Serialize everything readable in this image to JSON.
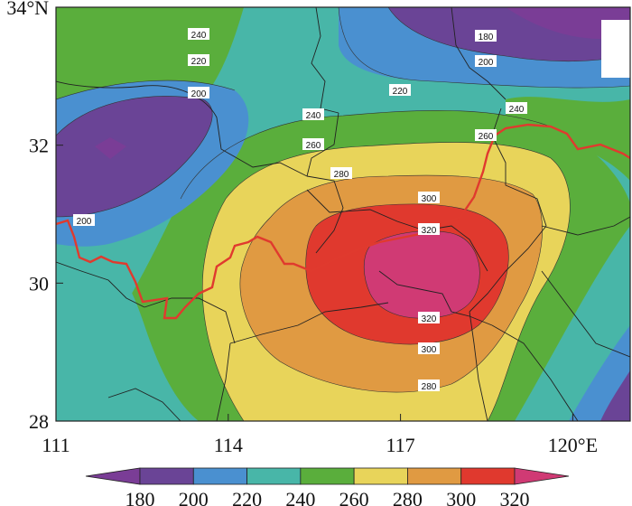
{
  "map": {
    "projection": "lat-lon",
    "extent": {
      "lon": [
        111,
        121.0
      ],
      "lat": [
        28,
        34
      ]
    },
    "lat_ticks": [
      {
        "value": 28,
        "label": "28"
      },
      {
        "value": 30,
        "label": "30"
      },
      {
        "value": 32,
        "label": "32"
      },
      {
        "value": 34,
        "label": "34°N"
      }
    ],
    "lon_ticks": [
      {
        "value": 111,
        "label": "111"
      },
      {
        "value": 114,
        "label": "114"
      },
      {
        "value": 117,
        "label": "117"
      },
      {
        "value": 120,
        "label": "120°E"
      }
    ],
    "contour_levels": [
      180,
      200,
      220,
      240,
      260,
      280,
      300,
      320
    ],
    "contour_labels": [
      {
        "text": "240"
      },
      {
        "text": "220"
      },
      {
        "text": "200"
      },
      {
        "text": "180"
      },
      {
        "text": "200"
      },
      {
        "text": "220"
      },
      {
        "text": "240"
      },
      {
        "text": "240"
      },
      {
        "text": "260"
      },
      {
        "text": "260"
      },
      {
        "text": "280"
      },
      {
        "text": "300"
      },
      {
        "text": "320"
      },
      {
        "text": "320"
      },
      {
        "text": "300"
      },
      {
        "text": "280"
      },
      {
        "text": "200"
      }
    ],
    "colors": {
      "below_180": "#7a3d96",
      "180_200": "#6a4496",
      "200_220": "#4a90d0",
      "220_240": "#48b6a8",
      "240_260": "#5aae3c",
      "260_280": "#e8d45a",
      "280_300": "#e09a42",
      "300_320": "#e0392e",
      "above_320": "#d03a74",
      "boundary": "#e03a2e",
      "province_lines": "#222222"
    }
  },
  "colorbar": {
    "labels": [
      "180",
      "200",
      "220",
      "240",
      "260",
      "280",
      "300",
      "320"
    ],
    "colors": [
      "#7a3d96",
      "#6a4496",
      "#4a90d0",
      "#48b6a8",
      "#5aae3c",
      "#e8d45a",
      "#e09a42",
      "#e0392e",
      "#d03a74"
    ]
  }
}
